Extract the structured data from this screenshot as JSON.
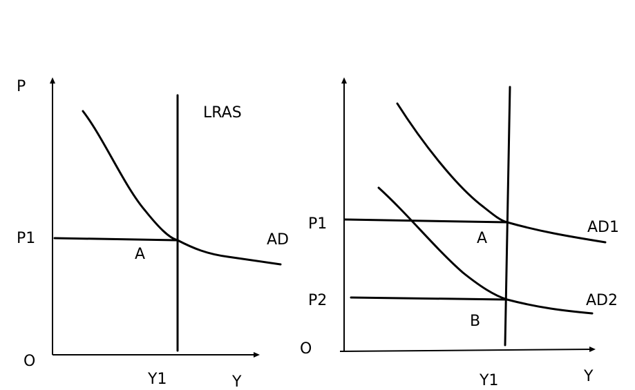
{
  "left_panel": {
    "axis_y_label": "P",
    "axis_x_label": "Y",
    "origin_label": "O",
    "price_label": "P1",
    "output_label": "Y1",
    "lras_label": "LRAS",
    "ad_label": "AD",
    "point_label": "A"
  },
  "right_panel": {
    "axis_x_label": "Y",
    "origin_label": "O",
    "price_label_1": "P1",
    "price_label_2": "P2",
    "output_label": "Y1",
    "ad1_label": "AD1",
    "ad2_label": "AD2",
    "point_a_label": "A",
    "point_b_label": "B"
  }
}
